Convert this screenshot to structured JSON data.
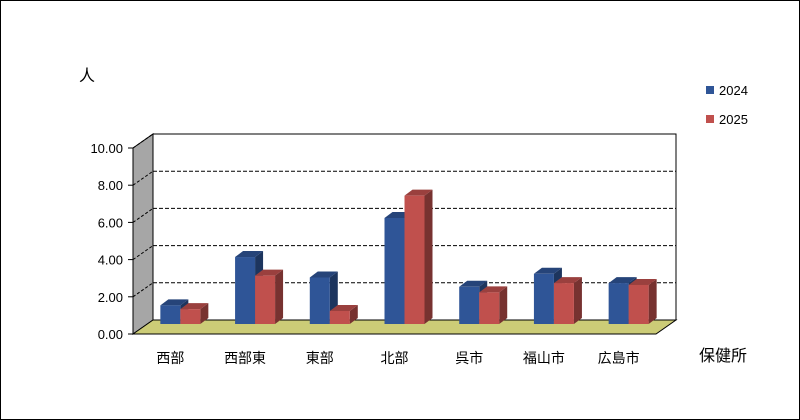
{
  "chart_data": {
    "type": "bar",
    "ylabel": "人",
    "xlabel": "保健所",
    "categories": [
      "西部",
      "西部東",
      "東部",
      "北部",
      "呉市",
      "福山市",
      "広島市"
    ],
    "series": [
      {
        "name": "2024",
        "values": [
          1.0,
          3.6,
          2.5,
          5.7,
          2.0,
          2.7,
          2.2
        ],
        "color": "#2F5597"
      },
      {
        "name": "2025",
        "values": [
          0.8,
          2.6,
          0.7,
          6.9,
          1.7,
          2.2,
          2.1
        ],
        "color": "#C0504D"
      }
    ],
    "ylim": [
      0,
      10
    ],
    "yticks": [
      "0.00",
      "2.00",
      "4.00",
      "6.00",
      "8.00",
      "10.00"
    ],
    "grid": true,
    "legend_position": "right",
    "wall_color": "#A6A6A6",
    "floor_color": "#CCCC77"
  }
}
